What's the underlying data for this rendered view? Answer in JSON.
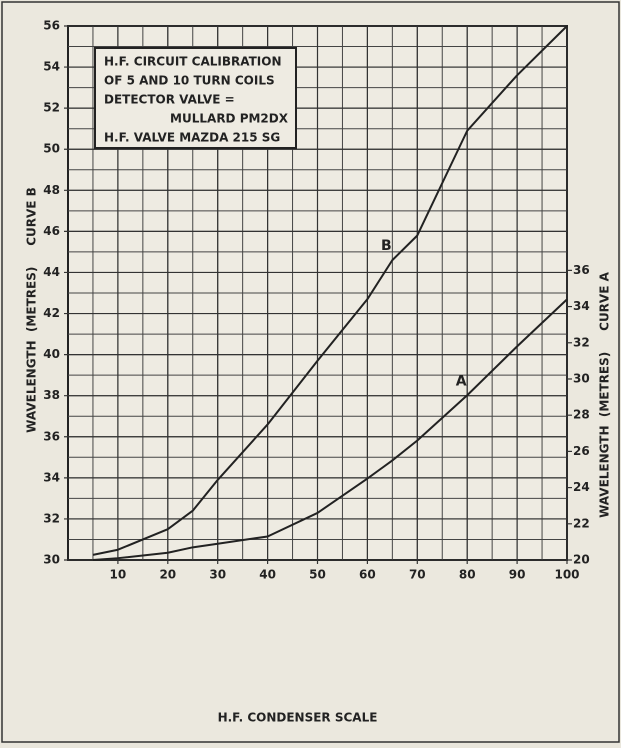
{
  "chart_data": {
    "type": "line",
    "annotation": [
      "H.F. CIRCUIT CALIBRATION",
      "OF 5 AND 10 TURN COILS",
      "DETECTOR VALVE =",
      "MULLARD PM2DX",
      "H.F. VALVE MAZDA 215 SG"
    ],
    "x_label": "H.F. CONDENSER SCALE",
    "y_label": "WAVELENGTH  (METRES)     CURVE B",
    "y2_label": "WAVELENGTH  (METRES)     CURVE A",
    "xlim": [
      0,
      100
    ],
    "xticks": [
      10,
      20,
      30,
      40,
      50,
      60,
      70,
      80,
      90,
      100
    ],
    "ylim": [
      30,
      56
    ],
    "yticks": [
      30,
      32,
      34,
      36,
      38,
      40,
      42,
      44,
      46,
      48,
      50,
      52,
      54,
      56
    ],
    "y2lim": [
      20,
      49.5
    ],
    "y2ticks": [
      20,
      22,
      24,
      26,
      28,
      30,
      32,
      34,
      36
    ],
    "grid": true,
    "minor_grid": true,
    "x": [
      5,
      10,
      20,
      25,
      30,
      40,
      50,
      60,
      65,
      70,
      80,
      90,
      100
    ],
    "series": [
      {
        "name": "B",
        "color": "#222222",
        "values": [
          30.25,
          30.5,
          31.5,
          32.4,
          33.9,
          36.6,
          39.7,
          42.7,
          44.6,
          45.8,
          50.9,
          53.6,
          56
        ]
      },
      {
        "name": "A",
        "color": "#222222",
        "axis": "y2",
        "values": [
          20,
          20.1,
          20.4,
          20.7,
          20.9,
          21.3,
          22.6,
          24.5,
          25.5,
          26.6,
          29.1,
          31.8,
          34.4
        ]
      }
    ]
  }
}
